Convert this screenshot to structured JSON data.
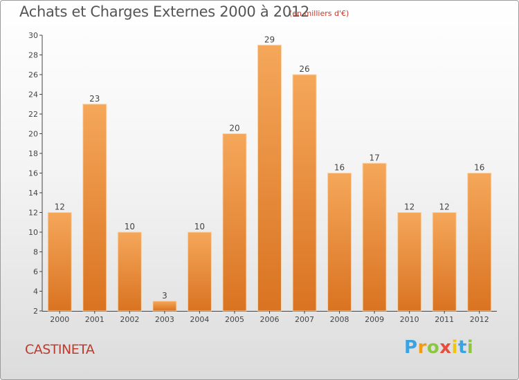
{
  "header": {
    "title": "Achats et Charges Externes 2000 à 2012",
    "subtitle": "(en milliers d'€)"
  },
  "footer": {
    "commune": "CASTINETA",
    "logo_letters": [
      "P",
      "r",
      "o",
      "x",
      "i",
      "t",
      "i"
    ],
    "logo_colors": [
      "#3aa3e3",
      "#f39c12",
      "#8dc63f",
      "#e74c3c",
      "#f1c40f",
      "#3aa3e3",
      "#8dc63f"
    ]
  },
  "colors": {
    "bar_top": "#f5a75a",
    "bar_bottom": "#d97321",
    "bar_edge": "#fbd3a5",
    "axis": "#444444",
    "grid": "#cccccc"
  },
  "chart_data": {
    "type": "bar",
    "title": "Achats et Charges Externes 2000 à 2012",
    "subtitle": "(en milliers d'€)",
    "categories": [
      "2000",
      "2001",
      "2002",
      "2003",
      "2004",
      "2005",
      "2006",
      "2007",
      "2008",
      "2009",
      "2010",
      "2011",
      "2012"
    ],
    "values": [
      12,
      23,
      10,
      3,
      10,
      20,
      29,
      26,
      16,
      17,
      12,
      12,
      16
    ],
    "xlabel": "",
    "ylabel": "",
    "ylim": [
      2,
      30
    ],
    "yticks": [
      2,
      4,
      6,
      8,
      10,
      12,
      14,
      16,
      18,
      20,
      22,
      24,
      26,
      28,
      30
    ],
    "grid": false,
    "data_labels": true
  }
}
